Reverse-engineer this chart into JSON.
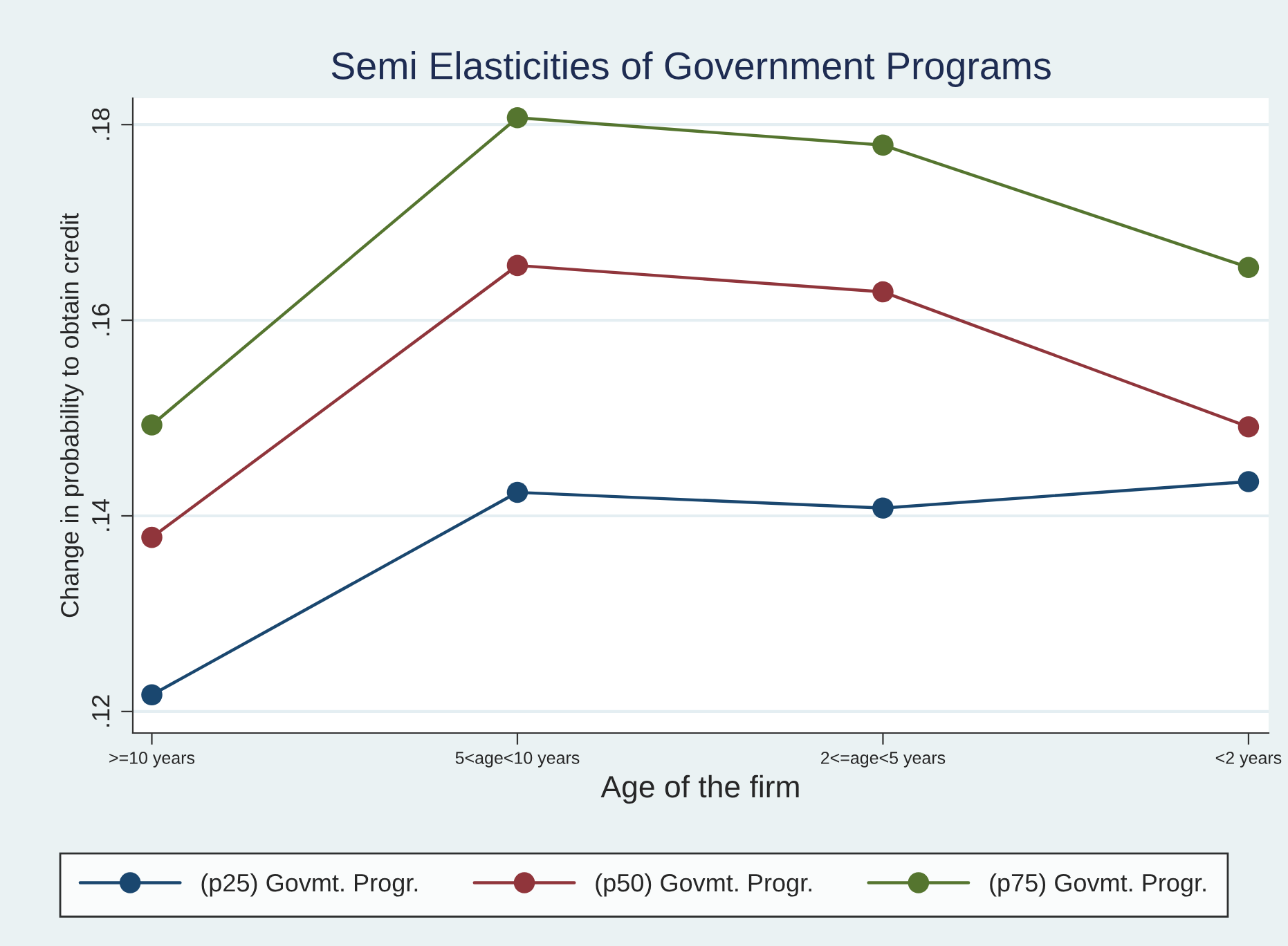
{
  "chart_data": {
    "type": "line",
    "title": "Semi Elasticities of Government Programs",
    "xlabel": "Age of the firm",
    "ylabel": "Change in probability to obtain credit",
    "categories": [
      ">=10 years",
      "5<age<10 years",
      "2<=age<5 years",
      "<2 years"
    ],
    "series": [
      {
        "name": "(p25) Govmt. Progr.",
        "color": "#1a476f",
        "values": [
          0.1217,
          0.1424,
          0.1408,
          0.1435
        ]
      },
      {
        "name": "(p50) Govmt. Progr.",
        "color": "#90353b",
        "values": [
          0.1378,
          0.1656,
          0.1629,
          0.1491
        ]
      },
      {
        "name": "(p75) Govmt. Progr.",
        "color": "#55752f",
        "values": [
          0.1493,
          0.1807,
          0.1779,
          0.1654
        ]
      }
    ],
    "ylim": [
      0.1178,
      0.1827
    ],
    "yticks": [
      {
        "value": 0.12,
        "label": ".12"
      },
      {
        "value": 0.14,
        "label": ".14"
      },
      {
        "value": 0.16,
        "label": ".16"
      },
      {
        "value": 0.18,
        "label": ".18"
      }
    ],
    "grid": "y",
    "legend": "bottom",
    "marker": "circle",
    "line_style": "solid"
  }
}
